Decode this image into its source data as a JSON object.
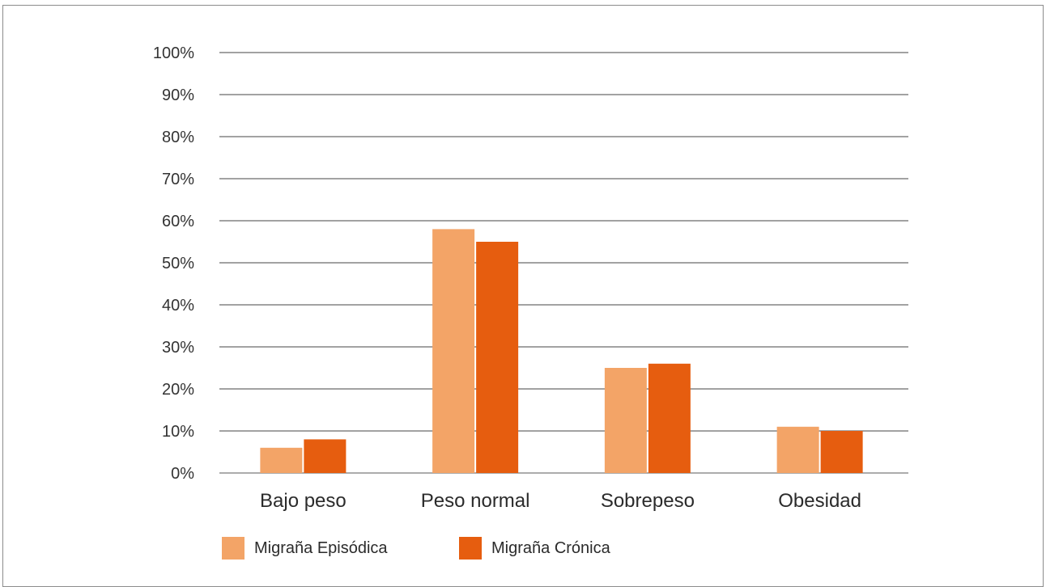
{
  "chart_data": {
    "type": "bar",
    "categories": [
      "Bajo peso",
      "Peso normal",
      "Sobrepeso",
      "Obesidad"
    ],
    "series": [
      {
        "name": "Migraña Episódica",
        "values": [
          6,
          58,
          25,
          11
        ],
        "color": "#f3a467"
      },
      {
        "name": "Migraña Crónica",
        "values": [
          8,
          55,
          26,
          10
        ],
        "color": "#e65d0f"
      }
    ],
    "yticks": [
      "0%",
      "10%",
      "20%",
      "30%",
      "40%",
      "50%",
      "60%",
      "70%",
      "80%",
      "90%",
      "100%"
    ],
    "ylim": [
      0,
      100
    ],
    "grid": true,
    "legend": "bottom-left"
  }
}
